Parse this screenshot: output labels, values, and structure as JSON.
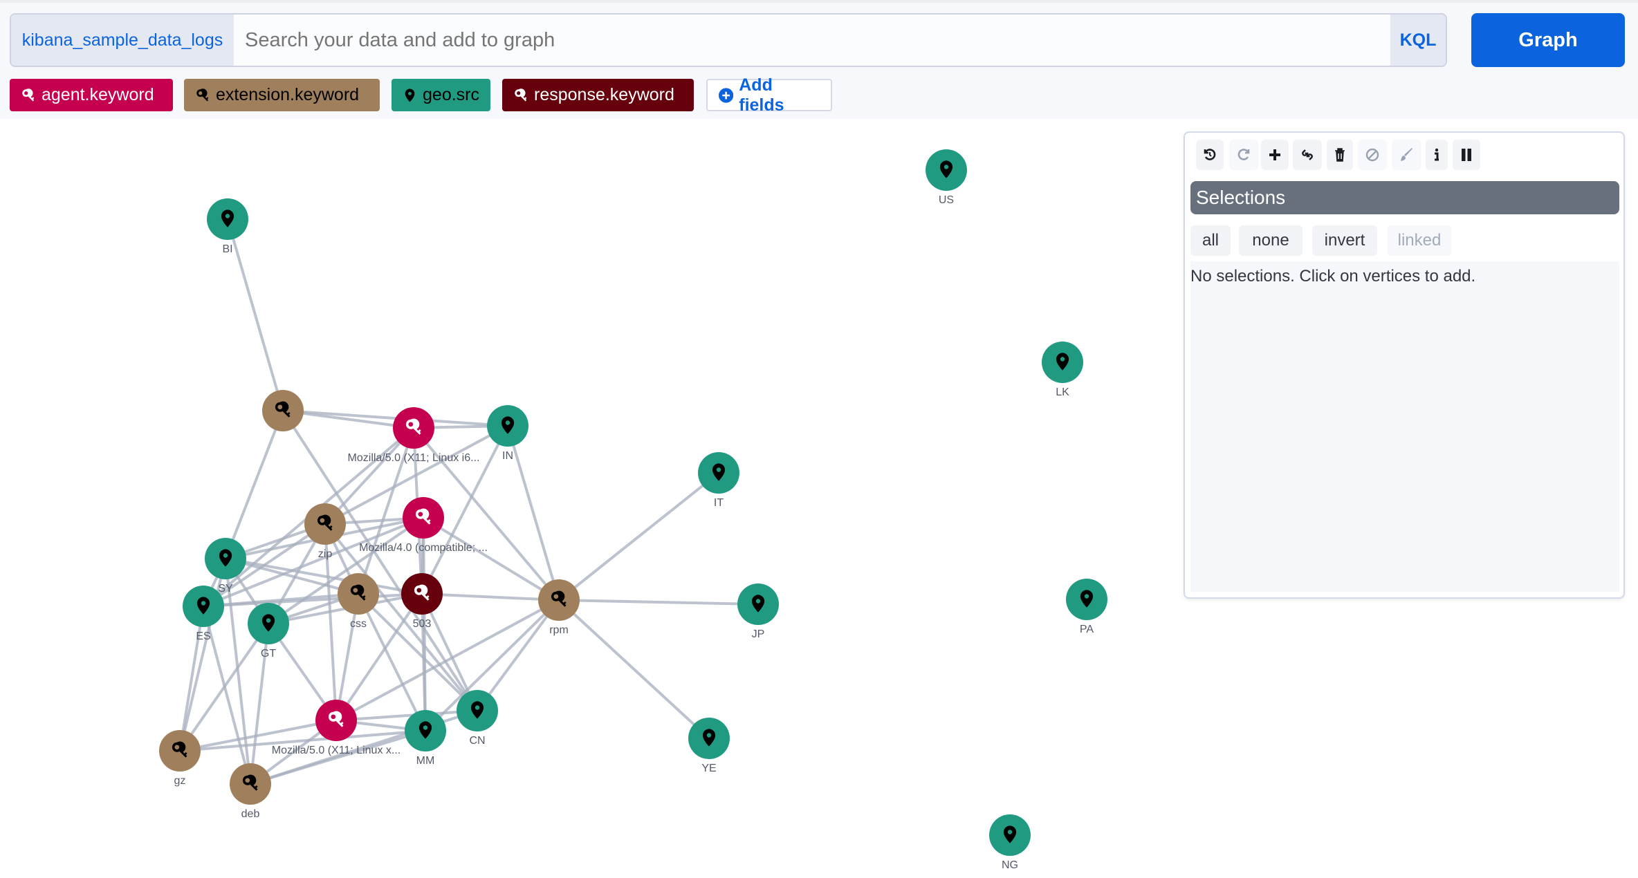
{
  "search": {
    "index": "kibana_sample_data_logs",
    "placeholder": "Search your data and add to graph",
    "language": "KQL",
    "submit": "Graph"
  },
  "fields": [
    {
      "label": "agent.keyword",
      "icon": "key-icon",
      "color": "#c4004f",
      "text": "#ffffff"
    },
    {
      "label": "extension.keyword",
      "icon": "key-icon",
      "color": "#a0805c",
      "text": "#000000"
    },
    {
      "label": "geo.src",
      "icon": "map-pin-icon",
      "color": "#209a80",
      "text": "#000000"
    },
    {
      "label": "response.keyword",
      "icon": "key-icon",
      "color": "#65000c",
      "text": "#ffffff"
    }
  ],
  "add_fields": "Add fields",
  "toolbar": [
    {
      "name": "undo-button",
      "icon": "undo-icon",
      "enabled": true
    },
    {
      "name": "redo-button",
      "icon": "redo-icon",
      "enabled": false
    },
    {
      "name": "expand-button",
      "icon": "plus-icon",
      "enabled": true
    },
    {
      "name": "link-button",
      "icon": "link-icon",
      "enabled": true
    },
    {
      "name": "delete-button",
      "icon": "trash-icon",
      "enabled": true
    },
    {
      "name": "blocklist-button",
      "icon": "block-icon",
      "enabled": false
    },
    {
      "name": "style-button",
      "icon": "brush-icon",
      "enabled": false
    },
    {
      "name": "info-button",
      "icon": "info-icon",
      "enabled": true
    },
    {
      "name": "pause-button",
      "icon": "pause-icon",
      "enabled": true
    }
  ],
  "selections": {
    "title": "Selections",
    "buttons": [
      "all",
      "none",
      "invert",
      "linked"
    ],
    "linked_disabled": true,
    "empty": "No selections. Click on vertices to add."
  },
  "graph": {
    "nodes": [
      {
        "id": "BI",
        "label": "BI",
        "type": "geo"
      },
      {
        "id": "ext0",
        "label": "",
        "type": "extension"
      },
      {
        "id": "mozi6",
        "label": "Mozilla/5.0 (X11; Linux i6...",
        "type": "agent"
      },
      {
        "id": "IN",
        "label": "IN",
        "type": "geo"
      },
      {
        "id": "IT",
        "label": "IT",
        "type": "geo"
      },
      {
        "id": "zip",
        "label": "zip",
        "type": "extension"
      },
      {
        "id": "moz4",
        "label": "Mozilla/4.0 (compatible; ...",
        "type": "agent"
      },
      {
        "id": "SY",
        "label": "SY",
        "type": "geo"
      },
      {
        "id": "ES",
        "label": "ES",
        "type": "geo"
      },
      {
        "id": "GT",
        "label": "GT",
        "type": "geo"
      },
      {
        "id": "css",
        "label": "css",
        "type": "extension"
      },
      {
        "id": "503",
        "label": "503",
        "type": "response"
      },
      {
        "id": "rpm",
        "label": "rpm",
        "type": "extension"
      },
      {
        "id": "JP",
        "label": "JP",
        "type": "geo"
      },
      {
        "id": "mozx",
        "label": "Mozilla/5.0 (X11; Linux x...",
        "type": "agent"
      },
      {
        "id": "MM",
        "label": "MM",
        "type": "geo"
      },
      {
        "id": "CN",
        "label": "CN",
        "type": "geo"
      },
      {
        "id": "YE",
        "label": "YE",
        "type": "geo"
      },
      {
        "id": "gz",
        "label": "gz",
        "type": "extension"
      },
      {
        "id": "deb",
        "label": "deb",
        "type": "extension"
      },
      {
        "id": "US",
        "label": "US",
        "type": "geo"
      },
      {
        "id": "LK",
        "label": "LK",
        "type": "geo"
      },
      {
        "id": "PA",
        "label": "PA",
        "type": "geo"
      },
      {
        "id": "NG",
        "label": "NG",
        "type": "geo"
      }
    ],
    "edges": [
      [
        "BI",
        "ext0"
      ],
      [
        "ext0",
        "mozi6"
      ],
      [
        "ext0",
        "IN"
      ],
      [
        "ext0",
        "SY"
      ],
      [
        "ext0",
        "CN"
      ],
      [
        "mozi6",
        "IN"
      ],
      [
        "mozi6",
        "zip"
      ],
      [
        "mozi6",
        "503"
      ],
      [
        "mozi6",
        "rpm"
      ],
      [
        "mozi6",
        "ES"
      ],
      [
        "mozi6",
        "css"
      ],
      [
        "IN",
        "rpm"
      ],
      [
        "IN",
        "zip"
      ],
      [
        "IN",
        "503"
      ],
      [
        "rpm",
        "IT"
      ],
      [
        "rpm",
        "JP"
      ],
      [
        "rpm",
        "YE"
      ],
      [
        "rpm",
        "503"
      ],
      [
        "rpm",
        "mozx"
      ],
      [
        "rpm",
        "MM"
      ],
      [
        "rpm",
        "CN"
      ],
      [
        "moz4",
        "zip"
      ],
      [
        "moz4",
        "SY"
      ],
      [
        "moz4",
        "ES"
      ],
      [
        "moz4",
        "rpm"
      ],
      [
        "moz4",
        "503"
      ],
      [
        "moz4",
        "MM"
      ],
      [
        "moz4",
        "GT"
      ],
      [
        "zip",
        "SY"
      ],
      [
        "zip",
        "ES"
      ],
      [
        "zip",
        "css"
      ],
      [
        "zip",
        "CN"
      ],
      [
        "zip",
        "mozx"
      ],
      [
        "zip",
        "GT"
      ],
      [
        "SY",
        "ES"
      ],
      [
        "SY",
        "503"
      ],
      [
        "SY",
        "css"
      ],
      [
        "SY",
        "GT"
      ],
      [
        "SY",
        "deb"
      ],
      [
        "ES",
        "css"
      ],
      [
        "ES",
        "503"
      ],
      [
        "ES",
        "gz"
      ],
      [
        "ES",
        "deb"
      ],
      [
        "GT",
        "css"
      ],
      [
        "GT",
        "mozx"
      ],
      [
        "GT",
        "gz"
      ],
      [
        "GT",
        "deb"
      ],
      [
        "GT",
        "503"
      ],
      [
        "css",
        "mozx"
      ],
      [
        "css",
        "CN"
      ],
      [
        "css",
        "MM"
      ],
      [
        "503",
        "MM"
      ],
      [
        "503",
        "mozx"
      ],
      [
        "503",
        "CN"
      ],
      [
        "mozx",
        "MM"
      ],
      [
        "mozx",
        "CN"
      ],
      [
        "mozx",
        "gz"
      ],
      [
        "mozx",
        "deb"
      ],
      [
        "MM",
        "gz"
      ],
      [
        "MM",
        "deb"
      ],
      [
        "CN",
        "deb"
      ],
      [
        "gz",
        "SY"
      ]
    ],
    "colors": {
      "agent": "#c4004f",
      "extension": "#a0805c",
      "geo": "#209a80",
      "response": "#65000c"
    },
    "icon_colors": {
      "agent": "#ffffff",
      "extension": "#000000",
      "geo": "#000000",
      "response": "#ffffff"
    }
  }
}
